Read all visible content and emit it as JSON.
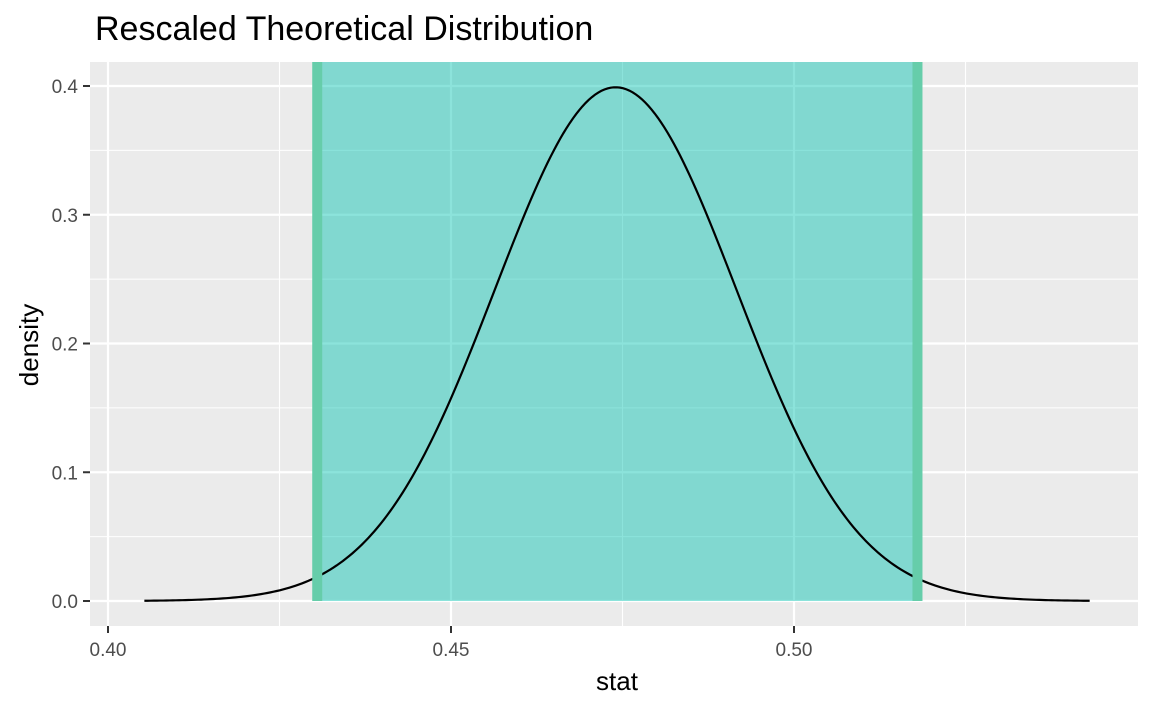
{
  "chart_data": {
    "type": "area",
    "title": "Rescaled Theoretical Distribution",
    "xlabel": "stat",
    "ylabel": "density",
    "xlim": [
      0.4,
      0.54
    ],
    "ylim": [
      0.0,
      0.4
    ],
    "x_ticks": [
      0.4,
      0.45,
      0.5
    ],
    "x_tick_labels": [
      "0.40",
      "0.45",
      "0.50"
    ],
    "y_ticks": [
      0.0,
      0.1,
      0.2,
      0.3,
      0.4
    ],
    "y_tick_labels": [
      "0.0",
      "0.1",
      "0.2",
      "0.3",
      "0.4"
    ],
    "grid": true,
    "panel_background": "#ebebeb",
    "distribution": {
      "kind": "normal",
      "mean": 0.474,
      "sd": 0.0176,
      "peak_density": 0.399,
      "x_range": [
        0.4053,
        0.5431
      ],
      "color": "#000000"
    },
    "shaded_interval": {
      "lower": 0.4305,
      "upper": 0.518,
      "fill": "#00c0b0",
      "fill_opacity": 0.45,
      "boundary_color": "#66cdaa"
    }
  }
}
